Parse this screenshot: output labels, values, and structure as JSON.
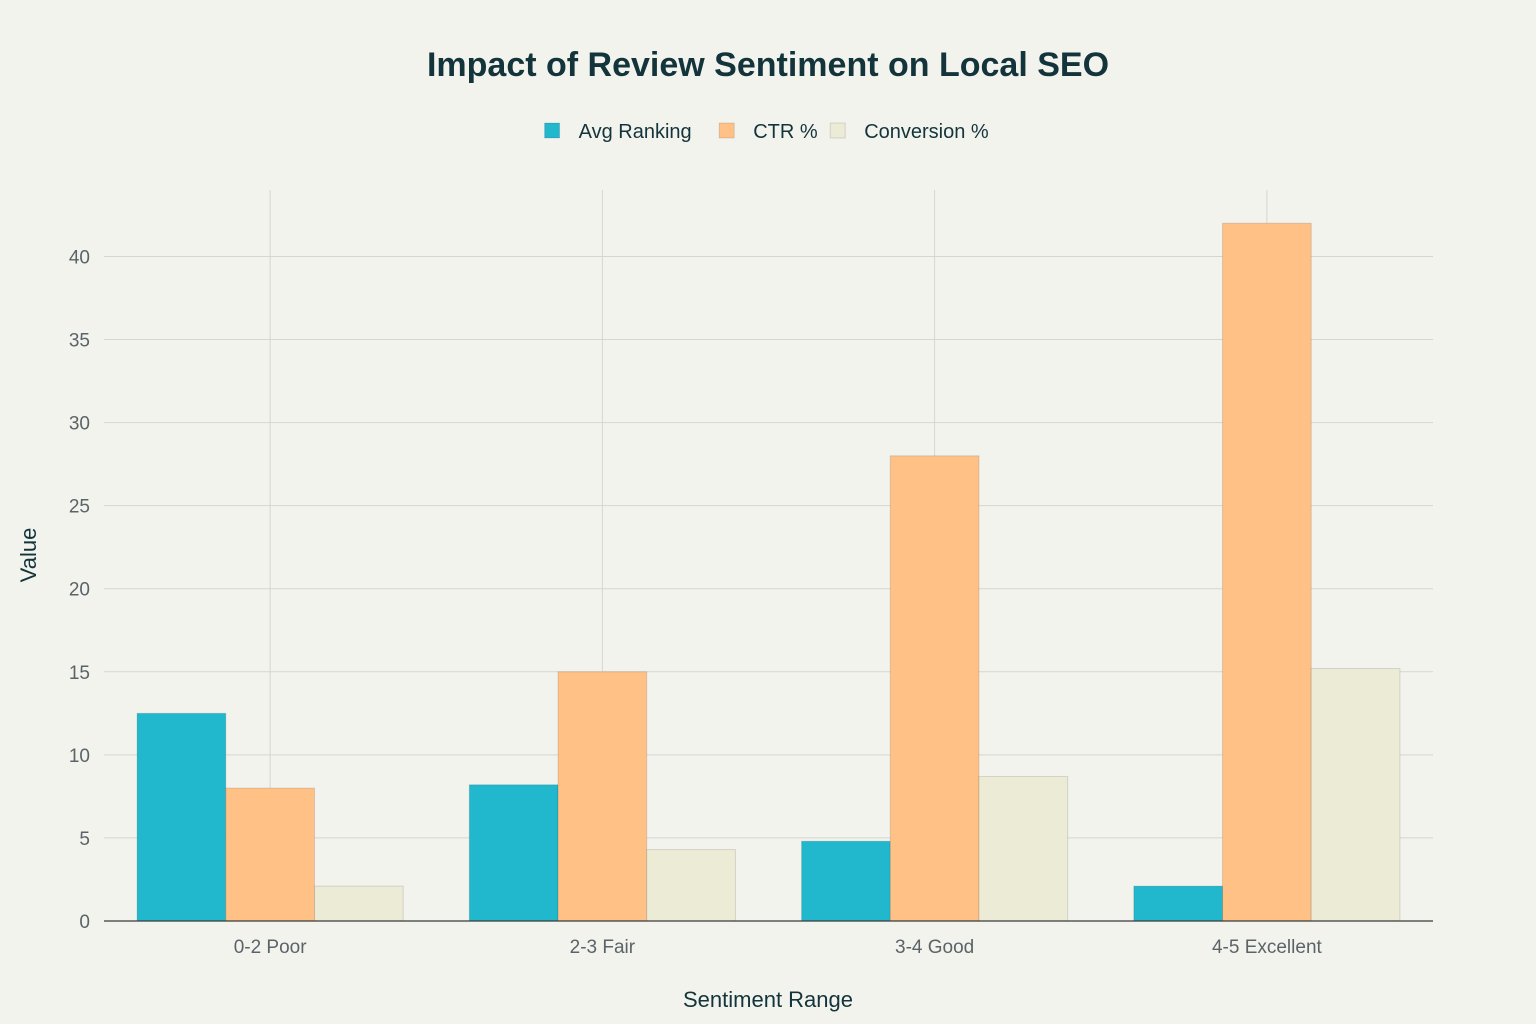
{
  "chart_data": {
    "type": "bar",
    "title": "Impact of Review Sentiment on Local SEO",
    "xlabel": "Sentiment Range",
    "ylabel": "Value",
    "categories": [
      "0-2 Poor",
      "2-3 Fair",
      "3-4 Good",
      "4-5 Excellent"
    ],
    "series": [
      {
        "name": "Avg Ranking",
        "color": "#21b8cd",
        "values": [
          12.5,
          8.2,
          4.8,
          2.1
        ]
      },
      {
        "name": "CTR %",
        "color": "#ffc185",
        "values": [
          8,
          15,
          28,
          42
        ]
      },
      {
        "name": "Conversion %",
        "color": "#ecebd5",
        "values": [
          2.1,
          4.3,
          8.7,
          15.2
        ]
      }
    ],
    "ylim": [
      0,
      44
    ],
    "yticks": [
      0,
      5,
      10,
      15,
      20,
      25,
      30,
      35,
      40
    ],
    "grid": true,
    "legend": "top-center"
  }
}
